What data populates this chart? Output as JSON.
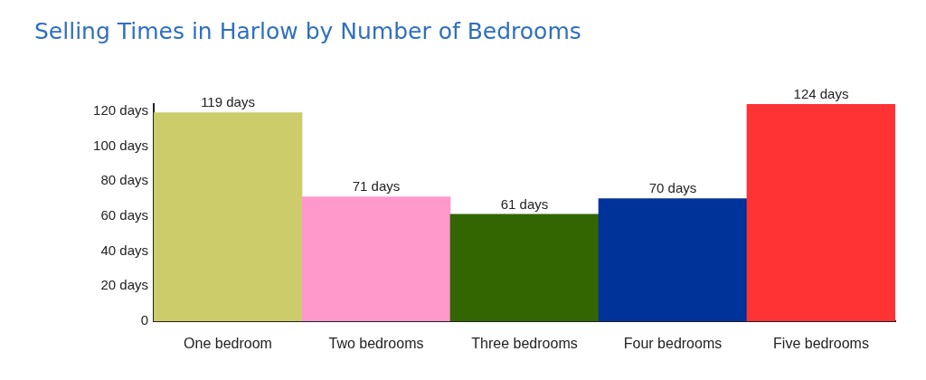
{
  "chart_data": {
    "type": "bar",
    "title": "Selling Times in Harlow by Number of Bedrooms",
    "categories": [
      "One bedroom",
      "Two bedrooms",
      "Three bedrooms",
      "Four bedrooms",
      "Five bedrooms"
    ],
    "values": [
      119,
      71,
      61,
      70,
      124
    ],
    "colors": [
      "#cccc6a",
      "#ff99cc",
      "#336600",
      "#003399",
      "#ff3333"
    ],
    "value_labels": [
      "119 days",
      "71 days",
      "61 days",
      "70 days",
      "124 days"
    ],
    "ylim": [
      0,
      124
    ],
    "yticks": [
      0,
      {
        "value": 20,
        "label": "20 days"
      },
      {
        "value": 40,
        "label": "40 days"
      },
      {
        "value": 60,
        "label": "60 days"
      },
      {
        "value": 80,
        "label": "80 days"
      },
      {
        "value": 100,
        "label": "100 days"
      },
      {
        "value": 120,
        "label": "120 days"
      }
    ]
  }
}
